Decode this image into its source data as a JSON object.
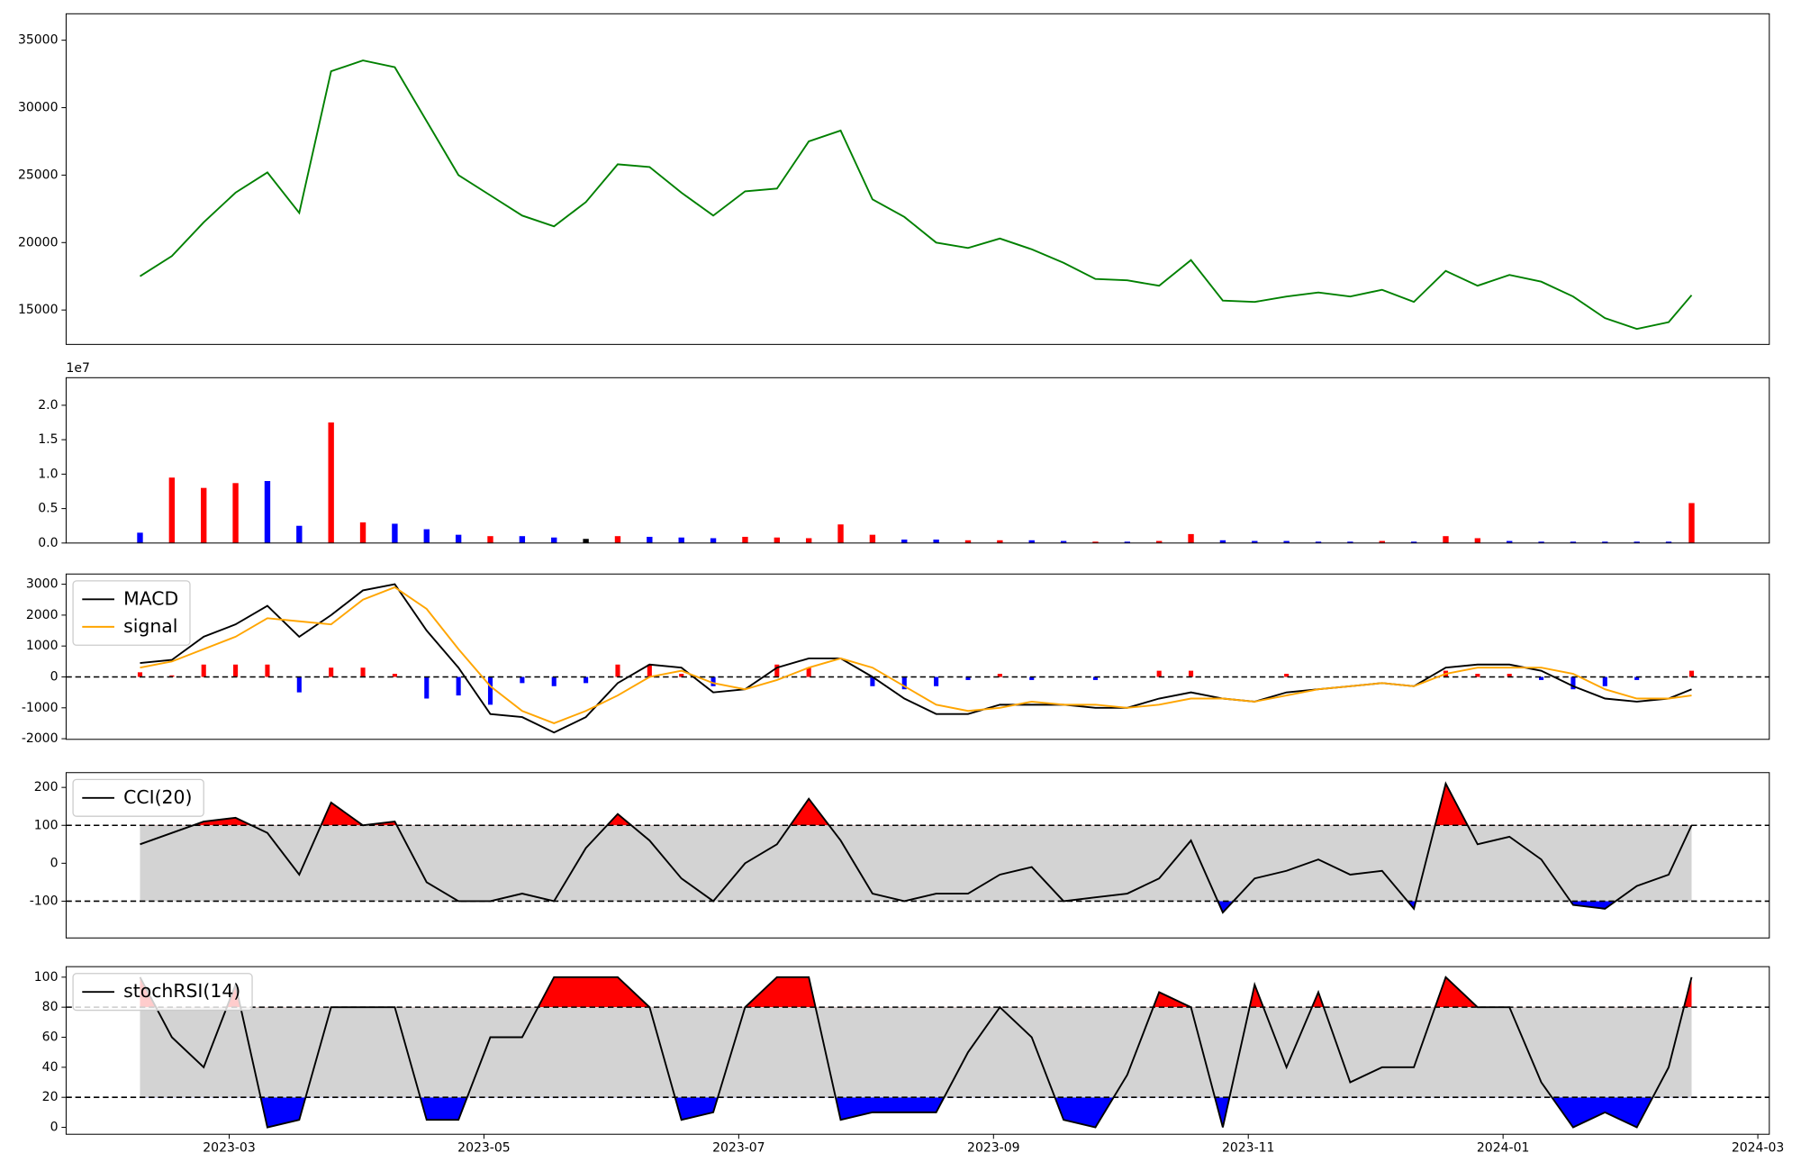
{
  "chart_data": [
    {
      "type": "line",
      "x": [
        1.3,
        1.55,
        1.8,
        2.05,
        2.3,
        2.55,
        2.8,
        3.05,
        3.3,
        3.55,
        3.8,
        4.05,
        4.3,
        4.55,
        4.8,
        5.05,
        5.3,
        5.55,
        5.8,
        6.05,
        6.3,
        6.55,
        6.8,
        7.05,
        7.3,
        7.55,
        7.8,
        8.05,
        8.3,
        8.55,
        8.8,
        9.05,
        9.3,
        9.55,
        9.8,
        10.05,
        10.3,
        10.55,
        10.8,
        11.05,
        11.3,
        11.55,
        11.8,
        12.05,
        12.3,
        12.55,
        12.8,
        13.05,
        13.3,
        13.48
      ],
      "series": [
        {
          "color": "green",
          "values": [
            17500,
            19000,
            21500,
            23700,
            25200,
            22200,
            32700,
            33500,
            33000,
            29000,
            25000,
            23500,
            22000,
            21200,
            23000,
            25800,
            25600,
            23700,
            22000,
            23800,
            24000,
            27500,
            28300,
            23200,
            21900,
            20000,
            19600,
            20300,
            19500,
            18500,
            17300,
            17200,
            16800,
            18700,
            15700,
            15600,
            16000,
            16300,
            16000,
            16500,
            15600,
            17900,
            16800,
            17600,
            17100,
            16000,
            14400,
            13600,
            14100,
            16100
          ]
        }
      ],
      "xlim": [
        0.72,
        14.09
      ],
      "ylim": [
        12450,
        36960
      ],
      "yticks": [
        15000,
        20000,
        25000,
        30000,
        35000
      ]
    },
    {
      "type": "bar",
      "x": [
        1.3,
        1.55,
        1.8,
        2.05,
        2.3,
        2.55,
        2.8,
        3.05,
        3.3,
        3.55,
        3.8,
        4.05,
        4.3,
        4.55,
        4.8,
        5.05,
        5.3,
        5.55,
        5.8,
        6.05,
        6.3,
        6.55,
        6.8,
        7.05,
        7.3,
        7.55,
        7.8,
        8.05,
        8.3,
        8.55,
        8.8,
        9.05,
        9.3,
        9.55,
        9.8,
        10.05,
        10.3,
        10.55,
        10.8,
        11.05,
        11.3,
        11.55,
        11.8,
        12.05,
        12.3,
        12.55,
        12.8,
        13.05,
        13.3,
        13.48
      ],
      "values": [
        1500000,
        9500000,
        8000000,
        8700000,
        9000000,
        2500000,
        17500000,
        3000000,
        2800000,
        2000000,
        1200000,
        1000000,
        1000000,
        800000,
        600000,
        1000000,
        900000,
        800000,
        700000,
        900000,
        800000,
        700000,
        2700000,
        1200000,
        500000,
        500000,
        400000,
        400000,
        400000,
        300000,
        200000,
        200000,
        300000,
        1300000,
        400000,
        300000,
        300000,
        200000,
        200000,
        300000,
        200000,
        1000000,
        700000,
        300000,
        200000,
        200000,
        200000,
        200000,
        200000,
        5800000
      ],
      "colors": [
        "blue",
        "red",
        "red",
        "red",
        "blue",
        "blue",
        "red",
        "red",
        "blue",
        "blue",
        "blue",
        "red",
        "blue",
        "blue",
        "black",
        "red",
        "blue",
        "blue",
        "blue",
        "red",
        "red",
        "red",
        "red",
        "red",
        "blue",
        "blue",
        "red",
        "red",
        "blue",
        "blue",
        "red",
        "blue",
        "red",
        "red",
        "blue",
        "blue",
        "blue",
        "blue",
        "blue",
        "red",
        "blue",
        "red",
        "red",
        "blue",
        "blue",
        "blue",
        "blue",
        "blue",
        "blue",
        "red"
      ],
      "offset_label": "1e7",
      "xlim": [
        0.72,
        14.09
      ],
      "ylim": [
        0,
        24000000
      ],
      "yticks": [
        {
          "value": 0,
          "label": "0.0"
        },
        {
          "value": 5000000,
          "label": "0.5"
        },
        {
          "value": 10000000,
          "label": "1.0"
        },
        {
          "value": 15000000,
          "label": "1.5"
        },
        {
          "value": 20000000,
          "label": "2.0"
        }
      ]
    },
    {
      "type": "macd",
      "x": [
        1.3,
        1.55,
        1.8,
        2.05,
        2.3,
        2.55,
        2.8,
        3.05,
        3.3,
        3.55,
        3.8,
        4.05,
        4.3,
        4.55,
        4.8,
        5.05,
        5.3,
        5.55,
        5.8,
        6.05,
        6.3,
        6.55,
        6.8,
        7.05,
        7.3,
        7.55,
        7.8,
        8.05,
        8.3,
        8.55,
        8.8,
        9.05,
        9.3,
        9.55,
        9.8,
        10.05,
        10.3,
        10.55,
        10.8,
        11.05,
        11.3,
        11.55,
        11.8,
        12.05,
        12.3,
        12.55,
        12.8,
        13.05,
        13.3,
        13.48
      ],
      "series": [
        {
          "name": "MACD",
          "color": "black",
          "values": [
            450,
            550,
            1300,
            1700,
            2300,
            1300,
            2000,
            2800,
            3000,
            1500,
            300,
            -1200,
            -1300,
            -1800,
            -1300,
            -200,
            400,
            300,
            -500,
            -400,
            300,
            600,
            600,
            0,
            -700,
            -1200,
            -1200,
            -900,
            -900,
            -900,
            -1000,
            -1000,
            -700,
            -500,
            -700,
            -800,
            -500,
            -400,
            -300,
            -200,
            -300,
            300,
            400,
            400,
            200,
            -300,
            -700,
            -800,
            -700,
            -400
          ]
        },
        {
          "name": "signal",
          "color": "orange",
          "values": [
            300,
            500,
            900,
            1300,
            1900,
            1800,
            1700,
            2500,
            2900,
            2200,
            900,
            -300,
            -1100,
            -1500,
            -1100,
            -600,
            0,
            200,
            -200,
            -400,
            -100,
            300,
            600,
            300,
            -300,
            -900,
            -1100,
            -1000,
            -800,
            -900,
            -900,
            -1000,
            -900,
            -700,
            -700,
            -800,
            -600,
            -400,
            -300,
            -200,
            -300,
            100,
            300,
            300,
            300,
            100,
            -400,
            -700,
            -700,
            -600
          ]
        }
      ],
      "histogram": {
        "positive_color": "red",
        "negative_color": "blue",
        "values": [
          150,
          50,
          400,
          400,
          400,
          -500,
          300,
          300,
          100,
          -700,
          -600,
          -900,
          -200,
          -300,
          -200,
          400,
          400,
          100,
          -300,
          0,
          400,
          300,
          0,
          -300,
          -400,
          -300,
          -100,
          100,
          -100,
          0,
          -100,
          0,
          200,
          200,
          0,
          0,
          100,
          0,
          0,
          0,
          0,
          200,
          100,
          100,
          -100,
          -400,
          -300,
          -100,
          0,
          200
        ]
      },
      "xlim": [
        0.72,
        14.09
      ],
      "ylim": [
        -2020,
        3330
      ],
      "yticks": [
        -2000,
        -1000,
        0,
        1000,
        2000,
        3000
      ]
    },
    {
      "type": "band",
      "x": [
        1.3,
        1.55,
        1.8,
        2.05,
        2.3,
        2.55,
        2.8,
        3.05,
        3.3,
        3.55,
        3.8,
        4.05,
        4.3,
        4.55,
        4.8,
        5.05,
        5.3,
        5.55,
        5.8,
        6.05,
        6.3,
        6.55,
        6.8,
        7.05,
        7.3,
        7.55,
        7.8,
        8.05,
        8.3,
        8.55,
        8.8,
        9.05,
        9.3,
        9.55,
        9.8,
        10.05,
        10.3,
        10.55,
        10.8,
        11.05,
        11.3,
        11.55,
        11.8,
        12.05,
        12.3,
        12.55,
        12.8,
        13.05,
        13.3,
        13.48
      ],
      "series": [
        {
          "name": "CCI(20)",
          "color": "black",
          "values": [
            50,
            80,
            110,
            120,
            80,
            -30,
            160,
            100,
            110,
            -50,
            -100,
            -100,
            -80,
            -100,
            40,
            130,
            60,
            -40,
            -100,
            0,
            50,
            170,
            60,
            -80,
            -100,
            -80,
            -80,
            -30,
            -10,
            -100,
            -90,
            -80,
            -40,
            60,
            -130,
            -40,
            -20,
            10,
            -30,
            -20,
            -120,
            210,
            50,
            70,
            10,
            -110,
            -120,
            -60,
            -30,
            100
          ]
        }
      ],
      "thresholds": [
        -100,
        100
      ],
      "band_color": "lightgray",
      "above_color": "red",
      "below_color": "blue",
      "xlim": [
        0.72,
        14.09
      ],
      "ylim": [
        -197,
        239
      ],
      "yticks": [
        -100,
        0,
        100,
        200
      ]
    },
    {
      "type": "band",
      "x": [
        1.3,
        1.55,
        1.8,
        2.05,
        2.3,
        2.55,
        2.8,
        3.05,
        3.3,
        3.55,
        3.8,
        4.05,
        4.3,
        4.55,
        4.8,
        5.05,
        5.3,
        5.55,
        5.8,
        6.05,
        6.3,
        6.55,
        6.8,
        7.05,
        7.3,
        7.55,
        7.8,
        8.05,
        8.3,
        8.55,
        8.8,
        9.05,
        9.3,
        9.55,
        9.8,
        10.05,
        10.3,
        10.55,
        10.8,
        11.05,
        11.3,
        11.55,
        11.8,
        12.05,
        12.3,
        12.55,
        12.8,
        13.05,
        13.3,
        13.48
      ],
      "series": [
        {
          "name": "stochRSI(14)",
          "color": "black",
          "values": [
            100,
            60,
            40,
            95,
            0,
            5,
            80,
            80,
            80,
            5,
            5,
            60,
            60,
            100,
            100,
            100,
            80,
            5,
            10,
            80,
            100,
            100,
            5,
            10,
            10,
            10,
            50,
            80,
            60,
            5,
            0,
            35,
            90,
            80,
            0,
            95,
            40,
            90,
            30,
            40,
            40,
            100,
            80,
            80,
            30,
            0,
            10,
            0,
            40,
            100
          ]
        }
      ],
      "thresholds": [
        20,
        80
      ],
      "band_color": "lightgray",
      "above_color": "red",
      "below_color": "blue",
      "xlim": [
        0.72,
        14.09
      ],
      "ylim": [
        -4.6,
        107
      ],
      "yticks": [
        0,
        20,
        40,
        60,
        80,
        100
      ],
      "xticks": [
        {
          "value": 2,
          "label": "2023-03"
        },
        {
          "value": 4,
          "label": "2023-05"
        },
        {
          "value": 6,
          "label": "2023-07"
        },
        {
          "value": 8,
          "label": "2023-09"
        },
        {
          "value": 10,
          "label": "2023-11"
        },
        {
          "value": 12,
          "label": "2024-01"
        },
        {
          "value": 14,
          "label": "2024-03"
        }
      ]
    }
  ]
}
